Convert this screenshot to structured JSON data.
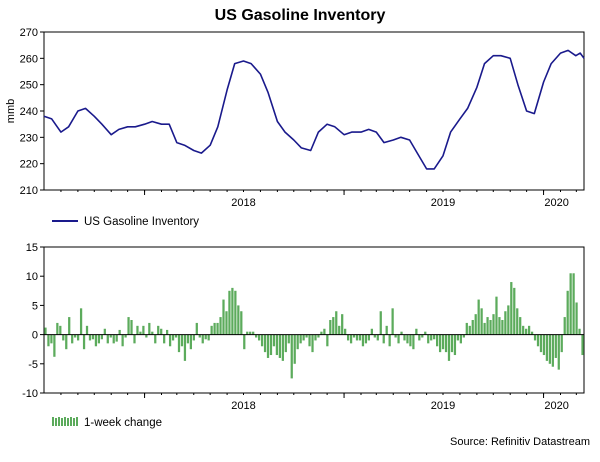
{
  "chart_data": [
    {
      "type": "line",
      "title": "US Gasoline Inventory",
      "ylabel": "mmb",
      "ylim": [
        210,
        270
      ],
      "yticks": [
        210,
        220,
        230,
        240,
        250,
        260,
        270
      ],
      "xlabels": [
        "2018",
        "2019",
        "2020"
      ],
      "xlim": [
        "2017-07-01",
        "2020-03-15"
      ],
      "legend_position": "bottom-left",
      "grid": false,
      "color": "#1a1a8c",
      "series": [
        {
          "name": "US Gasoline Inventory",
          "x": [
            "2017-07-01",
            "2017-07-15",
            "2017-08-01",
            "2017-08-15",
            "2017-09-01",
            "2017-09-15",
            "2017-10-01",
            "2017-10-15",
            "2017-11-01",
            "2017-11-15",
            "2017-12-01",
            "2017-12-15",
            "2018-01-01",
            "2018-01-15",
            "2018-02-01",
            "2018-02-15",
            "2018-03-01",
            "2018-03-15",
            "2018-04-01",
            "2018-04-15",
            "2018-05-01",
            "2018-05-15",
            "2018-06-01",
            "2018-06-15",
            "2018-07-01",
            "2018-07-15",
            "2018-08-01",
            "2018-08-15",
            "2018-09-01",
            "2018-09-15",
            "2018-10-01",
            "2018-10-15",
            "2018-11-01",
            "2018-11-15",
            "2018-12-01",
            "2018-12-15",
            "2019-01-01",
            "2019-01-15",
            "2019-02-01",
            "2019-02-15",
            "2019-03-01",
            "2019-03-15",
            "2019-04-01",
            "2019-04-15",
            "2019-05-01",
            "2019-05-15",
            "2019-06-01",
            "2019-06-15",
            "2019-07-01",
            "2019-07-15",
            "2019-08-01",
            "2019-08-15",
            "2019-09-01",
            "2019-09-15",
            "2019-10-01",
            "2019-10-15",
            "2019-11-01",
            "2019-11-15",
            "2019-12-01",
            "2019-12-15",
            "2020-01-01",
            "2020-01-15",
            "2020-02-01",
            "2020-02-15",
            "2020-02-29",
            "2020-03-08",
            "2020-03-15"
          ],
          "values": [
            238,
            237,
            232,
            234,
            240,
            241,
            238,
            235,
            231,
            233,
            234,
            234,
            235,
            236,
            235,
            235,
            228,
            227,
            225,
            224,
            227,
            234,
            248,
            258,
            259,
            258,
            254,
            247,
            236,
            232,
            229,
            226,
            225,
            232,
            235,
            234,
            231,
            232,
            232,
            233,
            232,
            228,
            229,
            230,
            229,
            224,
            218,
            218,
            223,
            232,
            237,
            241,
            249,
            258,
            261,
            261,
            260,
            250,
            240,
            239,
            251,
            258,
            262,
            263,
            261,
            262,
            260
          ]
        }
      ]
    },
    {
      "type": "bar",
      "ylim": [
        -10,
        15
      ],
      "yticks": [
        -10,
        -5,
        0,
        5,
        10,
        15
      ],
      "xlabels": [
        "2018",
        "2019",
        "2020"
      ],
      "xlim": [
        "2017-07-01",
        "2020-03-15"
      ],
      "legend_position": "bottom-left",
      "grid": false,
      "color": "#5cab5c",
      "series": [
        {
          "name": "1-week change",
          "values": [
            1.2,
            -2.0,
            -1.5,
            -3.8,
            2.0,
            1.5,
            -1.0,
            -2.5,
            3.0,
            -1.5,
            -0.5,
            -1.0,
            4.5,
            -2.5,
            1.5,
            -1.0,
            -0.8,
            -2.0,
            -1.5,
            -0.8,
            1.0,
            -1.5,
            -0.5,
            -1.5,
            -1.2,
            0.8,
            -2.0,
            -0.5,
            3.0,
            2.5,
            -1.5,
            1.5,
            0.5,
            1.5,
            -0.5,
            2.0,
            0.5,
            -1.5,
            1.5,
            1.0,
            -1.5,
            0.8,
            -2.0,
            -1.0,
            -0.5,
            -3.0,
            -2.0,
            -4.5,
            -1.5,
            -2.5,
            -1.0,
            2.0,
            -0.5,
            -1.5,
            -0.8,
            -1.0,
            1.5,
            2.0,
            2.0,
            3.0,
            6.0,
            4.0,
            7.5,
            8.0,
            7.5,
            5.0,
            4.0,
            -2.5,
            0.5,
            0.5,
            0.5,
            -0.5,
            -1.0,
            -2.0,
            -3.0,
            -4.0,
            -3.5,
            -2.0,
            -3.5,
            -4.0,
            -4.5,
            -3.0,
            -1.5,
            -7.5,
            -5.0,
            -2.5,
            -1.5,
            -1.0,
            -0.5,
            -2.0,
            -3.0,
            -1.0,
            -0.5,
            0.5,
            1.0,
            -2.0,
            2.5,
            3.0,
            4.0,
            1.5,
            3.5,
            1.0,
            -1.0,
            -1.5,
            -0.5,
            -1.0,
            -1.0,
            -2.0,
            -1.5,
            -1.0,
            1.0,
            -0.5,
            -1.0,
            4.0,
            -1.5,
            1.5,
            -2.0,
            4.5,
            -0.5,
            -1.5,
            0.5,
            -1.0,
            -1.5,
            -2.0,
            -2.5,
            1.0,
            -1.0,
            -0.5,
            0.5,
            -1.5,
            -1.0,
            -0.8,
            -2.0,
            -3.0,
            -2.5,
            -3.0,
            -4.5,
            -3.0,
            -3.5,
            -1.0,
            -1.5,
            -0.5,
            2.0,
            1.5,
            2.5,
            3.5,
            6.0,
            4.5,
            2.0,
            3.0,
            2.5,
            3.5,
            6.5,
            3.0,
            2.5,
            4.0,
            5.0,
            9.0,
            8.0,
            4.5,
            3.0,
            1.5,
            1.0,
            1.5,
            0.5,
            -1.0,
            -2.0,
            -3.0,
            -3.5,
            -4.5,
            -5.0,
            -5.5,
            -4.0,
            -6.0,
            -3.0,
            3.0,
            7.5,
            10.5,
            10.5,
            5.5,
            1.0,
            -3.5
          ]
        }
      ]
    }
  ],
  "source": "Source: Refinitiv Datastream"
}
